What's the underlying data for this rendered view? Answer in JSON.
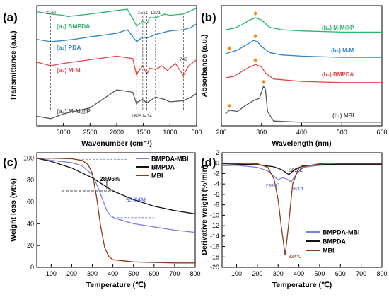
{
  "chart_data": [
    {
      "panel": "(a)",
      "type": "line",
      "xlabel": "Wavenumber (cm⁻¹)",
      "ylabel": "Transmittance (a.u.)",
      "xlim": [
        3500,
        500
      ],
      "x_ticks": [
        3000,
        2500,
        2000,
        1500,
        1000,
        500
      ],
      "y_ticks": "none",
      "x_reversed": true,
      "legend": "inline labels on curves",
      "series": [
        {
          "name": "(a₁) BMPDA",
          "color": "#2ab56b",
          "x": [
            3500,
            3240,
            3000,
            2920,
            2500,
            2000,
            1800,
            1625,
            1600,
            1511,
            1434,
            1380,
            1271,
            1100,
            1000,
            748,
            600,
            500
          ],
          "y": [
            0.95,
            0.93,
            0.92,
            0.91,
            0.93,
            0.96,
            0.97,
            0.83,
            0.84,
            0.87,
            0.85,
            0.9,
            0.9,
            0.93,
            0.92,
            0.93,
            0.96,
            0.98
          ]
        },
        {
          "name": "(a₂) PDA",
          "color": "#2f86c8",
          "x": [
            3500,
            3240,
            3000,
            2800,
            2500,
            2000,
            1800,
            1625,
            1600,
            1511,
            1434,
            1271,
            1100,
            1000,
            748,
            600,
            500
          ],
          "y": [
            0.72,
            0.7,
            0.71,
            0.72,
            0.74,
            0.77,
            0.8,
            0.7,
            0.71,
            0.74,
            0.73,
            0.76,
            0.78,
            0.79,
            0.8,
            0.82,
            0.85
          ]
        },
        {
          "name": "(a₃) M-M",
          "color": "#e04848",
          "x": [
            3500,
            3240,
            3000,
            2500,
            2000,
            1700,
            1625,
            1600,
            1511,
            1434,
            1380,
            1271,
            1150,
            1050,
            900,
            748,
            650,
            500
          ],
          "y": [
            0.53,
            0.5,
            0.52,
            0.55,
            0.58,
            0.56,
            0.42,
            0.45,
            0.5,
            0.43,
            0.48,
            0.47,
            0.5,
            0.46,
            0.52,
            0.42,
            0.5,
            0.55
          ]
        },
        {
          "name": "(a₄) M-M@P",
          "color": "#555555",
          "x": [
            3500,
            3240,
            3000,
            2500,
            2000,
            1700,
            1625,
            1600,
            1511,
            1434,
            1271,
            1100,
            1000,
            748,
            600,
            500
          ],
          "y": [
            0.08,
            0.06,
            0.1,
            0.15,
            0.3,
            0.28,
            0.18,
            0.2,
            0.22,
            0.19,
            0.24,
            0.22,
            0.2,
            0.21,
            0.24,
            0.27
          ]
        }
      ],
      "annotations": [
        "3240",
        "1511",
        "1271",
        "748",
        "1625",
        "1434"
      ],
      "annotation_x": [
        3240,
        1511,
        1271,
        748,
        1625,
        1434
      ]
    },
    {
      "panel": "(b)",
      "type": "line",
      "xlabel": "Wavelength (nm)",
      "ylabel": "Absorbance (a.u.)",
      "xlim": [
        200,
        600
      ],
      "x_ticks": [
        200,
        300,
        400,
        500,
        600
      ],
      "y_ticks": "none",
      "legend": "inline labels on curves",
      "series": [
        {
          "name": "(b₄) M-M@P",
          "color": "#2ab56b",
          "x": [
            210,
            230,
            250,
            270,
            285,
            300,
            320,
            350,
            400,
            500,
            600
          ],
          "y": [
            0.8,
            0.81,
            0.84,
            0.88,
            0.9,
            0.88,
            0.82,
            0.8,
            0.79,
            0.78,
            0.78
          ]
        },
        {
          "name": "(b₃) M-M",
          "color": "#2f86c8",
          "x": [
            210,
            220,
            240,
            260,
            280,
            290,
            300,
            320,
            350,
            400,
            500,
            600
          ],
          "y": [
            0.6,
            0.61,
            0.63,
            0.67,
            0.71,
            0.7,
            0.66,
            0.61,
            0.59,
            0.58,
            0.57,
            0.57
          ]
        },
        {
          "name": "(b₂) BMPDA",
          "color": "#e04848",
          "x": [
            210,
            230,
            250,
            270,
            285,
            300,
            310,
            330,
            400,
            500,
            600
          ],
          "y": [
            0.4,
            0.41,
            0.45,
            0.49,
            0.51,
            0.49,
            0.44,
            0.39,
            0.37,
            0.36,
            0.36
          ]
        },
        {
          "name": "(b₁) MBI",
          "color": "#555555",
          "x": [
            210,
            220,
            240,
            260,
            280,
            295,
            305,
            310,
            315,
            330,
            400,
            500,
            600
          ],
          "y": [
            0.1,
            0.13,
            0.12,
            0.17,
            0.21,
            0.23,
            0.33,
            0.3,
            0.12,
            0.04,
            0.03,
            0.03,
            0.03
          ]
        }
      ],
      "annotations": []
    },
    {
      "panel": "(c)",
      "type": "line",
      "xlabel": "Temperature (℃)",
      "ylabel": "Weight loss (wt%)",
      "xlim": [
        30,
        800
      ],
      "ylim": [
        0,
        105
      ],
      "x_ticks": [
        100,
        200,
        300,
        400,
        500,
        600,
        700,
        800
      ],
      "y_ticks": [
        0,
        20,
        40,
        60,
        80,
        100
      ],
      "legend": "top-right",
      "series": [
        {
          "name": "BMPDA-MBI",
          "color": "#7b7fe0",
          "x": [
            30,
            100,
            200,
            250,
            300,
            330,
            350,
            370,
            390,
            410,
            500,
            600,
            700,
            800
          ],
          "y": [
            100,
            98,
            96,
            93,
            85,
            72,
            62,
            52,
            47,
            45,
            40,
            37,
            34,
            32
          ]
        },
        {
          "name": "BMPDA",
          "color": "#111111",
          "x": [
            30,
            100,
            200,
            300,
            350,
            400,
            500,
            600,
            700,
            800
          ],
          "y": [
            100,
            97,
            91,
            82,
            76,
            70,
            62,
            56,
            52,
            49
          ]
        },
        {
          "name": "MBI",
          "color": "#8b3a1a",
          "x": [
            30,
            100,
            200,
            250,
            280,
            300,
            320,
            340,
            360,
            380,
            400,
            500,
            600,
            700,
            800
          ],
          "y": [
            100,
            100,
            99.5,
            98,
            94,
            86,
            65,
            38,
            18,
            10,
            7,
            5,
            4.5,
            4,
            4
          ]
        }
      ],
      "annotations": [
        "28.96%",
        "53.04%"
      ],
      "annotation_pos": [
        [
          385,
          79
        ],
        [
          415,
          60
        ]
      ]
    },
    {
      "panel": "(d)",
      "type": "line",
      "xlabel": "Temperature (℃)",
      "ylabel": "Derivative weight (%/min)",
      "xlim": [
        30,
        800
      ],
      "ylim": [
        -20,
        2
      ],
      "x_ticks": [
        100,
        200,
        300,
        400,
        500,
        600,
        700,
        800
      ],
      "y_ticks": [
        2,
        0,
        -2,
        -4,
        -6,
        -8,
        -10,
        -12,
        -14,
        -16,
        -18,
        -20
      ],
      "legend": "center-right",
      "series": [
        {
          "name": "BMPDA-MBI",
          "color": "#7b7fe0",
          "x": [
            30,
            100,
            200,
            250,
            280,
            299,
            320,
            340,
            363,
            390,
            420,
            500,
            600,
            700,
            800
          ],
          "y": [
            -0.5,
            -0.4,
            -0.8,
            -1.5,
            -2.5,
            -3.2,
            -2.8,
            -3.0,
            -3.6,
            -2.0,
            -0.8,
            -0.4,
            -0.3,
            -0.2,
            -0.2
          ]
        },
        {
          "name": "BMPDA",
          "color": "#111111",
          "x": [
            30,
            100,
            200,
            280,
            320,
            352,
            380,
            420,
            500,
            600,
            700,
            800
          ],
          "y": [
            -0.1,
            -0.2,
            -0.3,
            -0.7,
            -1.3,
            -2.2,
            -1.2,
            -0.5,
            -0.3,
            -0.2,
            -0.2,
            -0.2
          ]
        },
        {
          "name": "MBI",
          "color": "#8b3a1a",
          "x": [
            30,
            100,
            200,
            250,
            280,
            300,
            315,
            334,
            350,
            370,
            400,
            500,
            600,
            800
          ],
          "y": [
            0,
            0,
            -0.1,
            -0.8,
            -3,
            -7,
            -12,
            -17.7,
            -12,
            -4,
            -0.8,
            -0.1,
            0,
            0
          ]
        }
      ],
      "annotations": [
        "299℃",
        "363℃",
        "352℃",
        "334℃"
      ],
      "annotation_pos": [
        [
          299,
          -3.2
        ],
        [
          363,
          -3.6
        ],
        [
          352,
          -2.2
        ],
        [
          334,
          -17.7
        ]
      ]
    }
  ]
}
